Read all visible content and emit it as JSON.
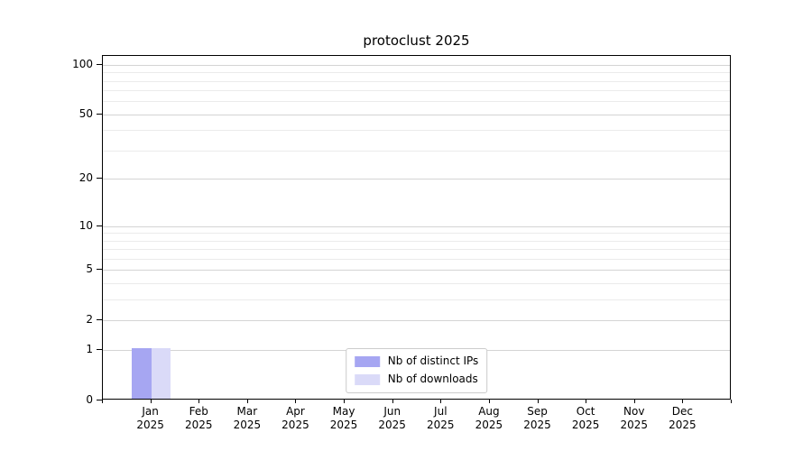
{
  "chart_data": {
    "type": "bar",
    "title": "protoclust 2025",
    "categories": [
      {
        "month": "Jan",
        "year": "2025"
      },
      {
        "month": "Feb",
        "year": "2025"
      },
      {
        "month": "Mar",
        "year": "2025"
      },
      {
        "month": "Apr",
        "year": "2025"
      },
      {
        "month": "May",
        "year": "2025"
      },
      {
        "month": "Jun",
        "year": "2025"
      },
      {
        "month": "Jul",
        "year": "2025"
      },
      {
        "month": "Aug",
        "year": "2025"
      },
      {
        "month": "Sep",
        "year": "2025"
      },
      {
        "month": "Oct",
        "year": "2025"
      },
      {
        "month": "Nov",
        "year": "2025"
      },
      {
        "month": "Dec",
        "year": "2025"
      }
    ],
    "series": [
      {
        "name": "Nb of distinct IPs",
        "color": "#a6a6f2",
        "values": [
          1,
          0,
          0,
          0,
          0,
          0,
          0,
          0,
          0,
          0,
          0,
          0
        ]
      },
      {
        "name": "Nb of downloads",
        "color": "#dadaf8",
        "values": [
          1,
          0,
          0,
          0,
          0,
          0,
          0,
          0,
          0,
          0,
          0,
          0
        ]
      }
    ],
    "y_axis": {
      "scale": "log1p",
      "ticks": [
        0,
        1,
        2,
        5,
        10,
        20,
        50,
        100
      ],
      "minor_gridlines": [
        3,
        4,
        6,
        7,
        8,
        9,
        30,
        40,
        60,
        70,
        80,
        90
      ],
      "ylim": [
        0,
        113
      ]
    },
    "legend": {
      "position": "lower center"
    },
    "grid": true
  },
  "colors": {
    "major_grid": "#d4d4d4",
    "minor_grid": "#ebebeb",
    "spine": "#000000",
    "legend_border": "#cccccc",
    "background": "#ffffff"
  }
}
